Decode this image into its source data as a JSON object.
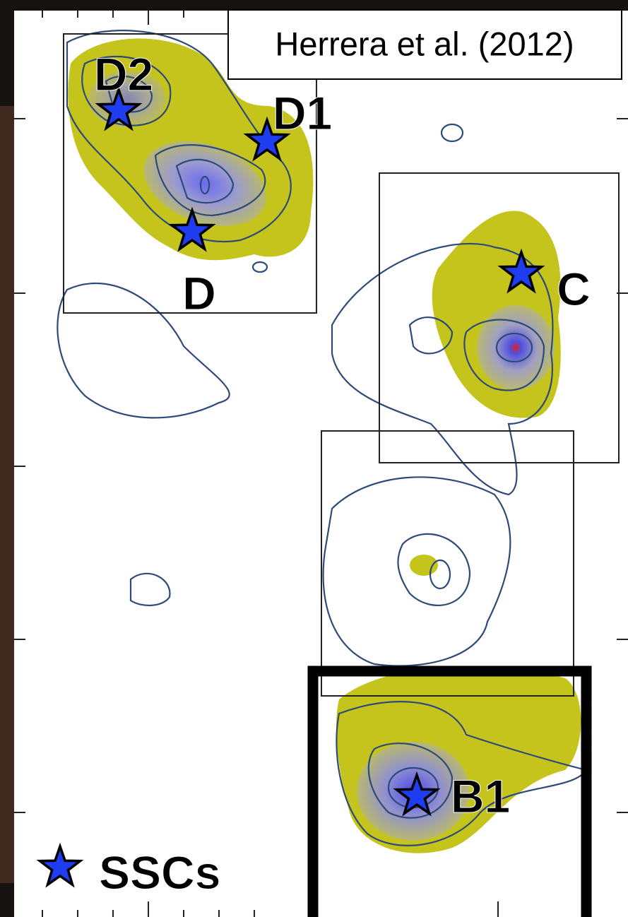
{
  "citation": "Herrera et al. (2012)",
  "labels": {
    "d2": "D2",
    "d1": "D1",
    "d": "D",
    "c": "C",
    "b1": "B1"
  },
  "legend": {
    "label": "SSCs"
  }
}
